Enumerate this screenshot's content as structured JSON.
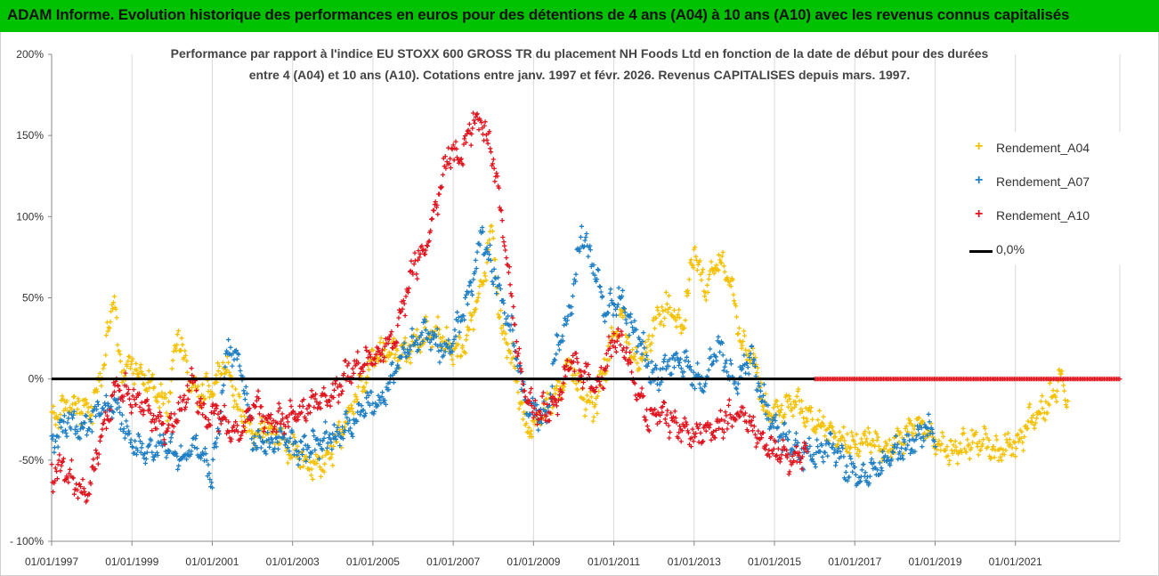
{
  "banner": {
    "title": "ADAM Informe. Evolution historique des performances en euros pour des détentions de 4 ans (A04) à 10 ans (A10) avec les revenus connus capitalisés",
    "background": "#00c200"
  },
  "chart_data": {
    "type": "scatter",
    "title_line1": "Performance par rapport à l'indice EU STOXX 600 GROSS TR  du placement NH Foods Ltd en fonction de la date de début pour des durées",
    "title_line2": "entre 4 (A04) et 10 ans (A10). Cotations entre janv. 1997 et févr. 2026. Revenus CAPITALISES depuis mars. 1997.",
    "xlabel": "",
    "ylabel": "",
    "xlim": [
      1997.0,
      2023.6
    ],
    "ylim": [
      -100,
      200
    ],
    "x_tick_values": [
      1997,
      1999,
      2001,
      2003,
      2005,
      2007,
      2009,
      2011,
      2013,
      2015,
      2017,
      2019,
      2021
    ],
    "x_tick_labels": [
      "01/01/1997",
      "01/01/1999",
      "01/01/2001",
      "01/01/2003",
      "01/01/2005",
      "01/01/2007",
      "01/01/2009",
      "01/01/2011",
      "01/01/2013",
      "01/01/2015",
      "01/01/2017",
      "01/01/2019",
      "01/01/2021"
    ],
    "y_tick_values": [
      200,
      150,
      100,
      50,
      0,
      -50,
      -100
    ],
    "y_tick_labels": [
      "200%",
      "150%",
      "100%",
      "50%",
      "0%",
      "-50%",
      "- 100%"
    ],
    "grid": "vertical",
    "legend_position": "right",
    "reference_line": {
      "name": "0,0%",
      "value": 0,
      "color": "#000000"
    },
    "series": [
      {
        "name": "Rendement_A04",
        "color": "#f5c000",
        "x": [
          1997.0,
          1997.5,
          1998.0,
          1998.3,
          1998.55,
          1998.7,
          1999.0,
          1999.5,
          1999.9,
          2000.15,
          2000.4,
          2000.7,
          2001.0,
          2001.3,
          2001.7,
          2002.0,
          2002.4,
          2002.8,
          2003.0,
          2003.4,
          2003.8,
          2004.2,
          2004.6,
          2005.0,
          2005.4,
          2005.8,
          2006.2,
          2006.6,
          2006.9,
          2007.2,
          2007.5,
          2007.75,
          2007.95,
          2008.2,
          2008.5,
          2008.8,
          2009.0,
          2009.3,
          2009.6,
          2009.9,
          2010.2,
          2010.5,
          2010.9,
          2011.2,
          2011.5,
          2011.8,
          2012.1,
          2012.4,
          2012.7,
          2013.0,
          2013.3,
          2013.6,
          2013.9,
          2014.2,
          2014.5,
          2014.8,
          2015.1,
          2015.5,
          2015.9,
          2016.2,
          2016.6,
          2017.0,
          2017.4,
          2017.8,
          2018.2,
          2018.6,
          2019.0,
          2019.4,
          2019.8,
          2020.2,
          2020.6,
          2021.0,
          2021.4,
          2021.8,
          2022.1,
          2022.3
        ],
        "values": [
          -25,
          -15,
          -20,
          10,
          55,
          5,
          10,
          -5,
          -15,
          30,
          0,
          -10,
          -5,
          10,
          -20,
          -35,
          -30,
          -40,
          -45,
          -55,
          -50,
          -35,
          -10,
          10,
          20,
          15,
          25,
          30,
          20,
          15,
          40,
          60,
          95,
          30,
          10,
          -30,
          -30,
          -15,
          -10,
          10,
          -10,
          -20,
          20,
          40,
          10,
          15,
          40,
          45,
          30,
          80,
          55,
          75,
          60,
          20,
          10,
          -20,
          -20,
          -15,
          -25,
          -30,
          -35,
          -40,
          -35,
          -45,
          -35,
          -25,
          -40,
          -45,
          -40,
          -40,
          -45,
          -40,
          -25,
          -15,
          0,
          -15
        ]
      },
      {
        "name": "Rendement_A07",
        "color": "#1f7fc4",
        "x": [
          1997.0,
          1997.4,
          1997.8,
          1998.2,
          1998.6,
          1999.0,
          1999.4,
          1999.8,
          2000.2,
          2000.6,
          2001.0,
          2001.4,
          2001.7,
          2002.0,
          2002.4,
          2002.8,
          2003.2,
          2003.6,
          2004.0,
          2004.4,
          2004.8,
          2005.2,
          2005.6,
          2006.0,
          2006.4,
          2006.8,
          2007.1,
          2007.4,
          2007.7,
          2007.95,
          2008.2,
          2008.5,
          2008.8,
          2009.0,
          2009.3,
          2009.6,
          2009.9,
          2010.2,
          2010.5,
          2010.8,
          2011.1,
          2011.4,
          2011.7,
          2012.0,
          2012.4,
          2012.8,
          2013.2,
          2013.6,
          2014.0,
          2014.4,
          2014.8,
          2015.2,
          2015.6,
          2016.0,
          2016.4,
          2016.8,
          2017.2,
          2017.6,
          2018.0,
          2018.4,
          2018.8,
          2019.0
        ],
        "values": [
          -40,
          -25,
          -30,
          -20,
          -15,
          -40,
          -45,
          -40,
          -50,
          -40,
          -60,
          20,
          10,
          -35,
          -40,
          -35,
          -45,
          -40,
          -35,
          -30,
          -15,
          -15,
          10,
          20,
          30,
          15,
          30,
          50,
          90,
          70,
          50,
          25,
          -15,
          -20,
          -25,
          20,
          40,
          90,
          70,
          40,
          50,
          35,
          20,
          0,
          10,
          10,
          -5,
          20,
          -5,
          15,
          -20,
          -35,
          -45,
          -45,
          -40,
          -55,
          -60,
          -55,
          -45,
          -40,
          -30,
          -35
        ]
      },
      {
        "name": "Rendement_A10",
        "color": "#e0141e",
        "x": [
          1997.0,
          1997.3,
          1997.6,
          1997.9,
          1998.2,
          1998.6,
          1999.0,
          1999.3,
          1999.6,
          1999.9,
          2000.2,
          2000.5,
          2000.8,
          2001.1,
          2001.4,
          2001.7,
          2002.0,
          2002.4,
          2002.8,
          2003.2,
          2003.6,
          2004.0,
          2004.4,
          2004.8,
          2005.2,
          2005.6,
          2006.0,
          2006.3,
          2006.6,
          2006.9,
          2007.2,
          2007.5,
          2007.8,
          2008.1,
          2008.4,
          2008.7,
          2009.0,
          2009.3,
          2009.6,
          2009.9,
          2010.2,
          2010.6,
          2011.0,
          2011.3,
          2011.6,
          2011.9,
          2012.2,
          2012.6,
          2013.0,
          2013.4,
          2013.8,
          2014.2,
          2014.6,
          2015.0,
          2015.4,
          2015.8
        ],
        "values": [
          -60,
          -55,
          -65,
          -70,
          -40,
          -5,
          -10,
          -15,
          -25,
          -30,
          -20,
          0,
          -25,
          -20,
          -30,
          -35,
          -15,
          -25,
          -25,
          -20,
          -15,
          -10,
          5,
          10,
          15,
          30,
          70,
          80,
          110,
          140,
          135,
          160,
          155,
          120,
          60,
          0,
          -20,
          -20,
          -15,
          10,
          5,
          -5,
          25,
          20,
          -10,
          -25,
          -20,
          -30,
          -35,
          -30,
          -25,
          -20,
          -35,
          -45,
          -50,
          -45
        ]
      }
    ],
    "a10_zero_segment": {
      "x_start": 2016.0,
      "x_end": 2023.6,
      "value": 0
    }
  }
}
